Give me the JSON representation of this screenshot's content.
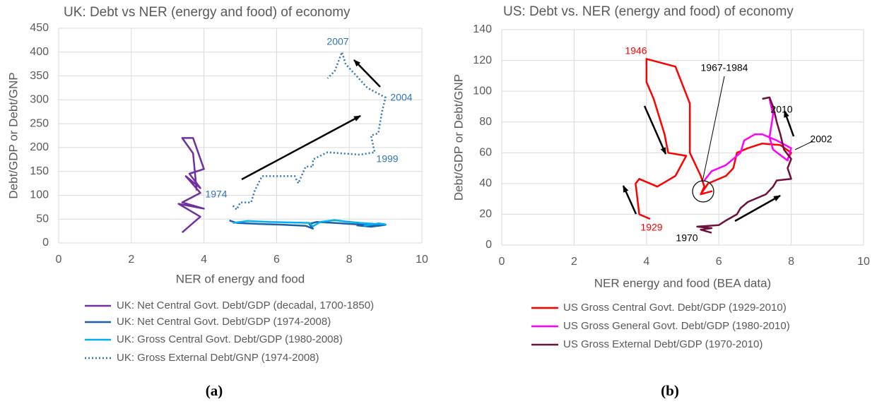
{
  "chart_data": [
    {
      "type": "line",
      "title": "UK: Debt vs NER (energy and food) of economy",
      "x_label": "NER of energy and food",
      "y_label": "Debt/GDP or Debt/GNP",
      "xlim": [
        0,
        10
      ],
      "xticks": [
        0,
        2,
        4,
        6,
        8,
        10
      ],
      "ylim": [
        0,
        450
      ],
      "yticks": [
        0,
        50,
        100,
        150,
        200,
        250,
        300,
        350,
        400,
        450
      ],
      "grid": true,
      "series": [
        {
          "name": "UK: Net Central Govt. Debt/GDP (decadal, 1700-1850)",
          "color": "#7030a0",
          "line_style": "solid",
          "x": [
            3.4,
            3.9,
            3.3,
            4.0,
            3.4,
            3.9,
            3.5,
            3.9,
            3.6,
            4.0,
            3.7,
            3.4,
            3.7,
            3.8
          ],
          "values": [
            22,
            55,
            82,
            72,
            85,
            105,
            140,
            115,
            145,
            155,
            220,
            220,
            188,
            110
          ]
        },
        {
          "name": "UK: Net Central Govt. Debt/GDP (1974-2008)",
          "color": "#1f5fa8",
          "line_style": "solid",
          "x": [
            4.7,
            4.9,
            5.5,
            6.2,
            6.8,
            7.0,
            6.9,
            7.1,
            7.6,
            8.0,
            8.4,
            8.8,
            9.0,
            8.6,
            8.2
          ],
          "values": [
            47,
            42,
            40,
            38,
            36,
            30,
            40,
            44,
            42,
            40,
            38,
            36,
            38,
            34,
            37
          ]
        },
        {
          "name": "UK: Gross Central Govt. Debt/GDP (1980-2008)",
          "color": "#00b0f0",
          "line_style": "solid",
          "x": [
            4.8,
            5.2,
            5.8,
            6.4,
            6.9,
            7.0,
            7.2,
            7.6,
            7.9,
            8.3,
            8.7,
            9.0,
            8.8,
            8.4
          ],
          "values": [
            42,
            46,
            44,
            43,
            42,
            35,
            44,
            48,
            45,
            42,
            40,
            39,
            41,
            36
          ]
        },
        {
          "name": "UK: Gross External Debt/GNP (1974-2008)",
          "color": "#2e75b6",
          "line_style": "dotted",
          "x": [
            4.8,
            4.9,
            5.0,
            5.3,
            5.4,
            5.6,
            6.5,
            6.6,
            6.8,
            7.0,
            7.0,
            7.4,
            8.3,
            8.7,
            8.6,
            8.8,
            8.9,
            9.0,
            8.5,
            7.9,
            7.8,
            7.6,
            7.4
          ],
          "values": [
            78,
            70,
            85,
            85,
            110,
            140,
            140,
            125,
            160,
            160,
            175,
            190,
            185,
            190,
            225,
            230,
            275,
            305,
            325,
            375,
            400,
            360,
            345
          ]
        }
      ],
      "annotations": [
        {
          "text": "1974",
          "color": "#2e75b6"
        },
        {
          "text": "1999",
          "color": "#2e75b6"
        },
        {
          "text": "2004",
          "color": "#2e75b6"
        },
        {
          "text": "2007",
          "color": "#2e75b6"
        }
      ],
      "caption": "(a)"
    },
    {
      "type": "line",
      "title": "US: Debt vs. NER (energy and food) of economy",
      "x_label": "NER energy and food (BEA data)",
      "y_label": "Debt/GDP or Debt/GNP",
      "xlim": [
        0,
        10
      ],
      "xticks": [
        0,
        2,
        4,
        6,
        8,
        10
      ],
      "ylim": [
        0,
        140
      ],
      "yticks": [
        0,
        20,
        40,
        60,
        80,
        100,
        120,
        140
      ],
      "grid": true,
      "series": [
        {
          "name": "US Gross Central Govt. Debt/GDP (1929-2010)",
          "color": "#ff0000",
          "line_style": "solid",
          "x": [
            4.1,
            3.8,
            3.7,
            3.8,
            4.3,
            4.8,
            5.1,
            4.6,
            4.5,
            4.2,
            4.0,
            4.0,
            4.8,
            5.2,
            5.2,
            5.2,
            5.5,
            5.6,
            5.5,
            5.8,
            5.5,
            5.7,
            6.2,
            6.4,
            6.5,
            6.8,
            7.2,
            7.7,
            8.0,
            7.9
          ],
          "values": [
            17,
            20,
            40,
            43,
            38,
            45,
            58,
            60,
            72,
            95,
            106,
            121,
            116,
            92,
            70,
            60,
            45,
            38,
            33,
            35,
            33,
            40,
            45,
            50,
            60,
            63,
            66,
            65,
            60,
            56
          ]
        },
        {
          "name": "US Gross General Govt. Debt/GDP (1980-2010)",
          "color": "#ff00ff",
          "line_style": "solid",
          "x": [
            5.6,
            5.8,
            6.2,
            6.6,
            6.7,
            7.0,
            7.2,
            7.6,
            8.0,
            7.9,
            7.5,
            7.4,
            7.5,
            7.4
          ],
          "values": [
            42,
            48,
            52,
            60,
            68,
            72,
            72,
            68,
            63,
            55,
            62,
            70,
            85,
            95
          ]
        },
        {
          "name": "US Gross External Debt/GDP (1970-2010)",
          "color": "#6d0f3d",
          "line_style": "solid",
          "x": [
            5.8,
            5.5,
            5.8,
            5.4,
            6.0,
            6.2,
            6.5,
            6.6,
            6.8,
            7.0,
            7.3,
            7.5,
            7.6,
            8.0,
            7.9,
            8.0,
            7.8,
            7.7,
            7.6,
            7.5,
            7.4,
            7.2
          ],
          "values": [
            8,
            10,
            11,
            12,
            13,
            16,
            20,
            24,
            28,
            30,
            33,
            38,
            42,
            43,
            50,
            56,
            62,
            72,
            80,
            90,
            96,
            95
          ]
        }
      ],
      "annotations": [
        {
          "text": "1946",
          "color": "#ff0000"
        },
        {
          "text": "1929",
          "color": "#ff0000"
        },
        {
          "text": "1967-1984",
          "color": "#000000"
        },
        {
          "text": "2010",
          "color": "#000000"
        },
        {
          "text": "2002",
          "color": "#000000"
        },
        {
          "text": "1970",
          "color": "#000000"
        }
      ],
      "caption": "(b)"
    }
  ]
}
